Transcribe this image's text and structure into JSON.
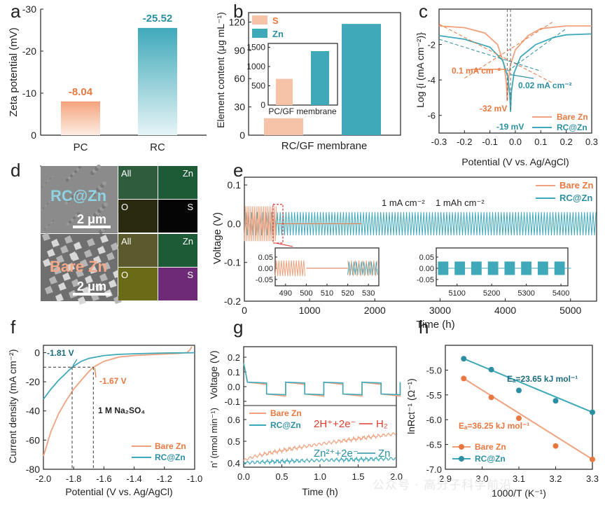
{
  "panel_labels": [
    "a",
    "b",
    "c",
    "d",
    "e",
    "f",
    "g",
    "h"
  ],
  "colors": {
    "orange": "#F0A27F",
    "orange_dark": "#E8783F",
    "teal": "#3FA9BA",
    "teal_dark": "#2C8FA2",
    "pink_fill": "#F6C3A8"
  },
  "watermark": "公众号 · 高分子科学前沿",
  "chart_data": [
    {
      "panel": "a",
      "type": "bar",
      "categories": [
        "PC",
        "RC"
      ],
      "values": [
        -8.04,
        -25.52
      ],
      "value_labels": [
        "-8.04",
        "-25.52"
      ],
      "ylabel": "Zeta potential (mV)",
      "ylim": [
        0,
        -30
      ],
      "yticks": [
        "0",
        "-10",
        "-20",
        "-30"
      ],
      "bar_style": "gradient fade to white"
    },
    {
      "panel": "b",
      "type": "bar",
      "categories": [
        "RC/GF membrane"
      ],
      "series": [
        {
          "name": "S",
          "values": [
            18
          ]
        },
        {
          "name": "Zn",
          "values": [
            118
          ]
        }
      ],
      "ylabel": "Element content (μg mL⁻¹)",
      "ylim": [
        0,
        130
      ],
      "yticks": [
        "0",
        "30",
        "60",
        "90",
        "120"
      ],
      "legend": "top-left",
      "inset": {
        "categories": [
          "PC/GF membrane"
        ],
        "series": [
          {
            "name": "S",
            "values": [
              680
            ]
          },
          {
            "name": "Zn",
            "values": [
              1400
            ]
          }
        ],
        "ylim": [
          0,
          1600
        ],
        "yticks": [
          "0",
          "500",
          "1000",
          "1500"
        ]
      }
    },
    {
      "panel": "c",
      "type": "line",
      "xlabel": "Potential (V vs. Ag/AgCl)",
      "ylabel": "Log {i (mA cm⁻²)}",
      "xlim": [
        -0.3,
        0.3
      ],
      "ylim": [
        -7,
        0
      ],
      "xticks": [
        "-0.3",
        "-0.2",
        "-0.1",
        "0.0",
        "0.1",
        "0.2",
        "0.3"
      ],
      "yticks": [
        "-6",
        "-4",
        "-2"
      ],
      "series": [
        {
          "name": "Bare Zn",
          "x": [
            -0.3,
            -0.2,
            -0.12,
            -0.07,
            -0.045,
            -0.035,
            -0.032,
            -0.029,
            -0.02,
            0.0,
            0.05,
            0.1,
            0.2,
            0.3
          ],
          "y": [
            -0.95,
            -1.05,
            -1.35,
            -2.0,
            -3.1,
            -4.2,
            -5.2,
            -4.2,
            -3.2,
            -2.3,
            -1.5,
            -1.1,
            -0.95,
            -0.95
          ]
        },
        {
          "name": "RC@Zn",
          "x": [
            -0.3,
            -0.2,
            -0.1,
            -0.05,
            -0.03,
            -0.022,
            -0.019,
            -0.016,
            -0.005,
            0.02,
            0.08,
            0.15,
            0.2,
            0.3
          ],
          "y": [
            -1.5,
            -1.7,
            -2.15,
            -2.9,
            -3.8,
            -4.8,
            -5.8,
            -4.7,
            -3.6,
            -2.7,
            -2.0,
            -1.6,
            -1.45,
            -1.4
          ]
        }
      ],
      "annotations": [
        "0.1 mA cm⁻²",
        "0.02 mA cm⁻²",
        "-32 mV",
        "-19 mV"
      ],
      "legend": "bottom-right"
    },
    {
      "panel": "e",
      "type": "line",
      "xlabel": "Time (h)",
      "ylabel": "Voltage (V)",
      "xlim": [
        0,
        5400
      ],
      "ylim": [
        -0.2,
        0.12
      ],
      "xticks": [
        "0",
        "1000",
        "2000",
        "3000",
        "4000",
        "5000"
      ],
      "yticks": [
        "0.1",
        "0.0",
        "-0.1",
        "-0.2"
      ],
      "series": [
        {
          "name": "Bare Zn",
          "x": [
            0,
            500
          ],
          "amplitude_V": 0.045
        },
        {
          "name": "RC@Zn",
          "x": [
            0,
            5400
          ],
          "amplitude_V": 0.03
        }
      ],
      "annotations": [
        "1 mA cm⁻²",
        "1 mAh cm⁻²"
      ],
      "insets": [
        {
          "xticks": [
            "490",
            "500",
            "510",
            "520",
            "530"
          ],
          "yticks": [
            "0.05",
            "0.00",
            "-0.05"
          ]
        },
        {
          "xticks": [
            "5100",
            "5200",
            "5300",
            "5400"
          ],
          "yticks": [
            "0.05",
            "0.00",
            "-0.05"
          ]
        }
      ],
      "legend": "top-right"
    },
    {
      "panel": "f",
      "type": "line",
      "xlabel": "Potential (V vs. Ag/AgCl)",
      "ylabel": "Current density (mA cm⁻²)",
      "xlim": [
        -2.0,
        -1.0
      ],
      "ylim": [
        -80,
        5
      ],
      "xticks": [
        "-2.0",
        "-1.8",
        "-1.6",
        "-1.4",
        "-1.2",
        "-1.0"
      ],
      "yticks": [
        "0",
        "-20",
        "-40",
        "-60",
        "-80"
      ],
      "series": [
        {
          "name": "Bare Zn",
          "x": [
            -2.0,
            -1.95,
            -1.9,
            -1.85,
            -1.8,
            -1.75,
            -1.7,
            -1.67,
            -1.6,
            -1.5,
            -1.4,
            -1.3,
            -1.2,
            -1.1,
            -1.05,
            -1.03,
            -1.02
          ],
          "y": [
            -71,
            -54,
            -42,
            -33,
            -25,
            -19,
            -13,
            -10,
            -6,
            -3,
            -2,
            -1.5,
            -1,
            -0.5,
            0,
            2,
            4
          ]
        },
        {
          "name": "RC@Zn",
          "x": [
            -2.0,
            -1.95,
            -1.9,
            -1.85,
            -1.81,
            -1.75,
            -1.7,
            -1.6,
            -1.5,
            -1.4,
            -1.3,
            -1.2,
            -1.1,
            -1.0
          ],
          "y": [
            -32,
            -25,
            -19,
            -14,
            -10,
            -6,
            -4,
            -2,
            -1.2,
            -0.8,
            -0.5,
            -0.3,
            -0.2,
            -0.1
          ]
        }
      ],
      "annotations": [
        "-1.81 V",
        "-1.67 V",
        "1 M Na₂SO₄"
      ],
      "legend": "bottom-right"
    },
    {
      "panel": "g",
      "type": "line",
      "xlabel": "Time (h)",
      "ylabel_top": "Voltage (V)",
      "ylabel_bottom": "n' (nmol min⁻¹)",
      "xlim": [
        0,
        2.0
      ],
      "xticks": [
        "0.0",
        "0.5",
        "1.0",
        "1.5",
        "2.0"
      ],
      "yticks_top": [
        "0.2",
        "0.1",
        "0.0",
        "-0.1"
      ],
      "yticks_bottom": [
        "0.6",
        "0.5",
        "0.4"
      ],
      "series": [
        {
          "name": "Bare Zn",
          "x": [
            0,
            0.5,
            1.0,
            1.5,
            2.0
          ],
          "y": [
            0.41,
            0.45,
            0.49,
            0.52,
            0.535
          ]
        },
        {
          "name": "RC@Zn",
          "x": [
            0,
            0.5,
            1.0,
            1.5,
            2.0
          ],
          "y": [
            0.4,
            0.41,
            0.415,
            0.42,
            0.42
          ]
        }
      ],
      "annotations": [
        "2H⁺+2e⁻",
        "H₂",
        "Zn²⁺+2e⁻",
        "Zn"
      ],
      "legend": "top-left"
    },
    {
      "panel": "h",
      "type": "scatter",
      "xlabel": "1000/T (K⁻¹)",
      "ylabel": "lnRct⁻¹ (Ω⁻¹)",
      "xlim": [
        2.9,
        3.3
      ],
      "ylim": [
        -7.0,
        -4.5
      ],
      "xticks": [
        "2.9",
        "3.0",
        "3.1",
        "3.2",
        "3.3"
      ],
      "yticks": [
        "-5.0",
        "-5.5",
        "-6.0",
        "-6.5",
        "-7.0"
      ],
      "series": [
        {
          "name": "Bare Zn",
          "x": [
            2.95,
            3.025,
            3.1,
            3.2,
            3.3
          ],
          "y": [
            -5.17,
            -5.55,
            -5.97,
            -6.53,
            -6.8
          ]
        },
        {
          "name": "RC@Zn",
          "x": [
            2.95,
            3.025,
            3.1,
            3.2,
            3.3
          ],
          "y": [
            -4.77,
            -4.99,
            -5.41,
            -5.62,
            -5.85
          ]
        }
      ],
      "annotations": [
        "Eₐ=23.65 kJ mol⁻¹",
        "Eₐ=36.25 kJ mol⁻¹"
      ],
      "legend": "bottom-left"
    }
  ],
  "panel_d": {
    "image_labels": [
      "RC@Zn",
      "Bare Zn"
    ],
    "scale_bar": "2 μm",
    "map_labels": [
      "All",
      "Zn",
      "O",
      "S"
    ]
  }
}
